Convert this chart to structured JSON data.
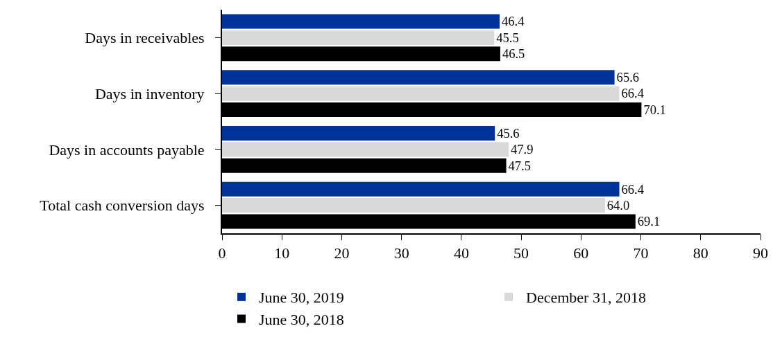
{
  "chart_data": {
    "type": "bar",
    "orientation": "horizontal",
    "categories": [
      "Days in receivables",
      "Days in inventory",
      "Days in accounts payable",
      "Total cash conversion days"
    ],
    "series": [
      {
        "name": "June 30, 2019",
        "color": "#003399",
        "values": [
          46.4,
          65.6,
          45.6,
          66.4
        ],
        "value_labels": [
          "46.4",
          "65.6",
          "45.6",
          "66.4"
        ]
      },
      {
        "name": "December 31, 2018",
        "color": "#d9d9d9",
        "values": [
          45.5,
          66.4,
          47.9,
          64.0
        ],
        "value_labels": [
          "45.5",
          "66.4",
          "47.9",
          "64.0"
        ]
      },
      {
        "name": "June 30, 2018",
        "color": "#000000",
        "values": [
          46.5,
          70.1,
          47.5,
          69.1
        ],
        "value_labels": [
          "46.5",
          "70.1",
          "47.5",
          "69.1"
        ]
      }
    ],
    "xlim": [
      0,
      90
    ],
    "xticks": [
      0,
      10,
      20,
      30,
      40,
      50,
      60,
      70,
      80,
      90
    ],
    "grid": false,
    "legend": "bottom"
  }
}
